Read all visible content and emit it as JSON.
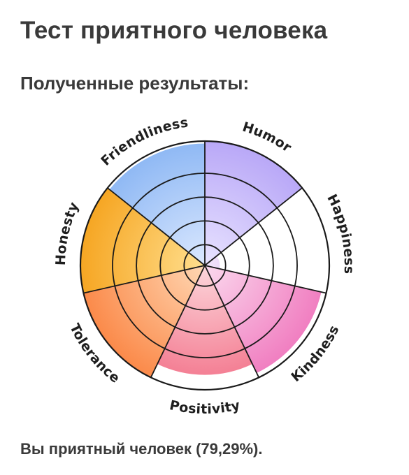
{
  "header": {
    "title": "Тест приятного человека",
    "subtitle": "Полученные результаты:"
  },
  "result": {
    "text": "Вы приятный человек (79,29%)."
  },
  "chart_data": {
    "type": "polar-area",
    "title": "",
    "rlim": [
      0,
      5
    ],
    "rings": 5,
    "categories": [
      "Humor",
      "Happiness",
      "Kindness",
      "Positivity",
      "Tolerance",
      "Honesty",
      "Friendliness"
    ],
    "values": [
      5,
      0.6,
      4.8,
      4.4,
      5.3,
      5.3,
      4.9
    ],
    "colors": {
      "Humor": [
        "#e8e3ff",
        "#b9a8f7"
      ],
      "Happiness": [
        "#f3e6fb",
        "#c68ee6"
      ],
      "Kindness": [
        "#fbd9ee",
        "#f07bbf"
      ],
      "Positivity": [
        "#fcd7dc",
        "#f3748b"
      ],
      "Tolerance": [
        "#ffd7b3",
        "#fb8a4a"
      ],
      "Honesty": [
        "#ffdf8e",
        "#f6a623"
      ],
      "Friendliness": [
        "#dbe8ff",
        "#8eb8f4"
      ]
    }
  }
}
